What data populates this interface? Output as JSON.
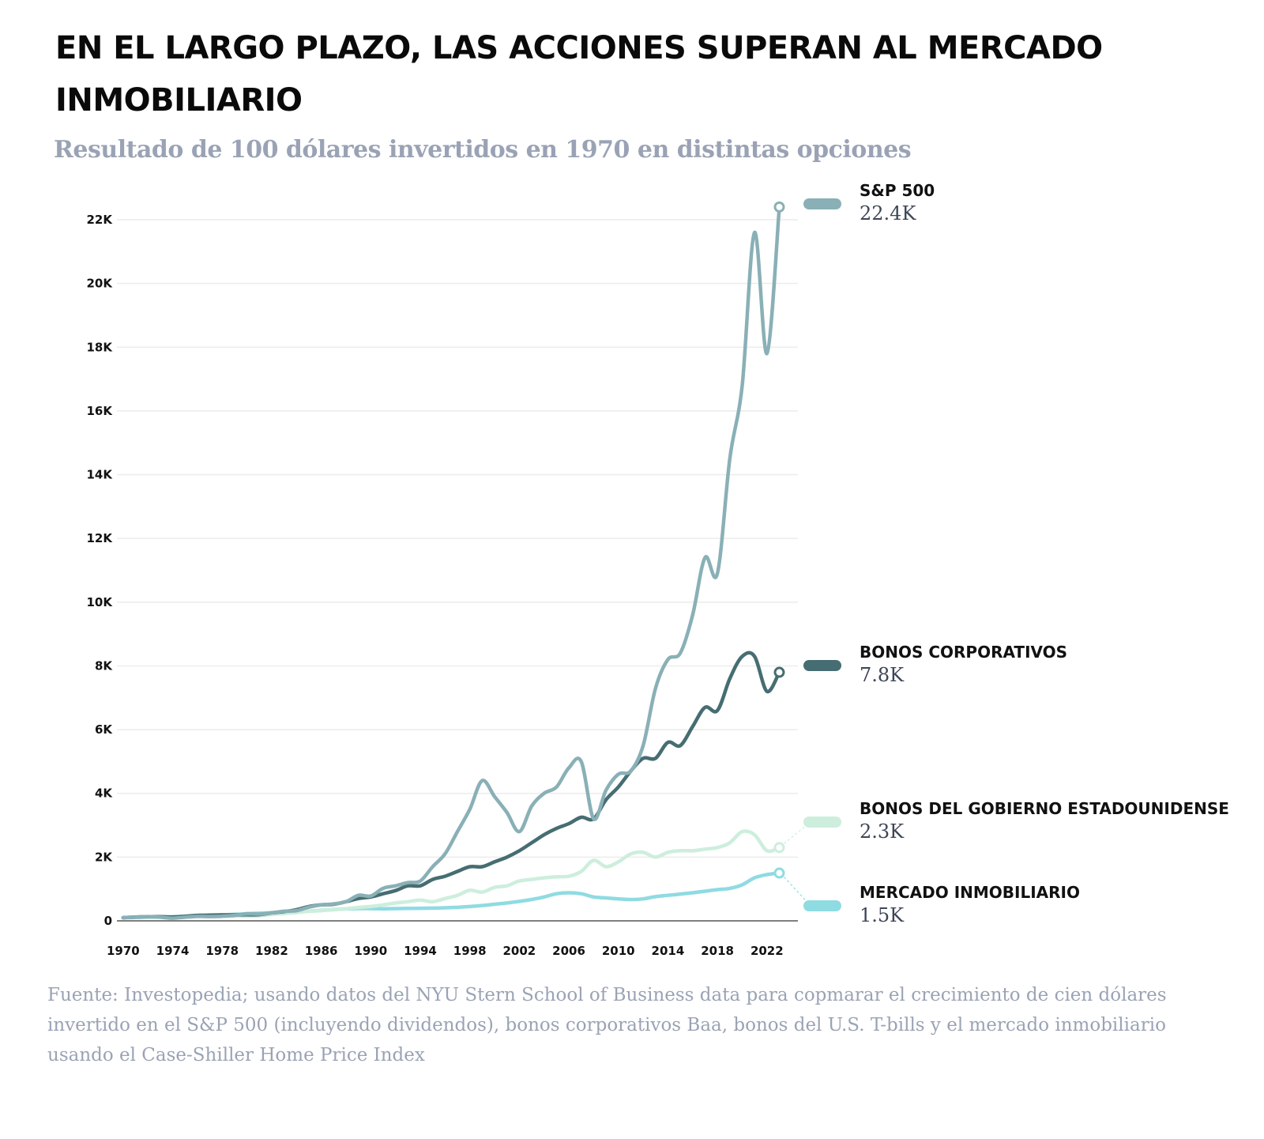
{
  "chart_data": {
    "type": "line",
    "title": "EN EL LARGO PLAZO, LAS ACCIONES SUPERAN AL MERCADO INMOBILIARIO",
    "subtitle": "Resultado de 100 dólares invertidos en 1970 en distintas opciones",
    "source": "Fuente: Investopedia; usando datos del NYU Stern School of Business data para copmarar el crecimiento de cien dólares invertido en el S&P 500 (incluyendo dividendos), bonos corporativos Baa, bonos del U.S. T-bills y el mercado inmobiliario usando el Case-Shiller Home Price Index",
    "xlabel": "",
    "ylabel": "",
    "xlim": [
      1969.5,
      2024.5
    ],
    "ylim": [
      0,
      22000
    ],
    "grid": true,
    "x_ticks": [
      1970,
      1974,
      1978,
      1982,
      1986,
      1990,
      1994,
      1998,
      2002,
      2006,
      2010,
      2014,
      2018,
      2022
    ],
    "y_ticks": [
      {
        "value": 0,
        "label": "0"
      },
      {
        "value": 2000,
        "label": "2K"
      },
      {
        "value": 4000,
        "label": "4K"
      },
      {
        "value": 6000,
        "label": "6K"
      },
      {
        "value": 8000,
        "label": "8K"
      },
      {
        "value": 10000,
        "label": "10K"
      },
      {
        "value": 12000,
        "label": "12K"
      },
      {
        "value": 14000,
        "label": "14K"
      },
      {
        "value": 16000,
        "label": "16K"
      },
      {
        "value": 18000,
        "label": "18K"
      },
      {
        "value": 20000,
        "label": "20K"
      },
      {
        "value": 22000,
        "label": "22K"
      }
    ],
    "legend_position": "right",
    "x": [
      1970,
      1971,
      1972,
      1973,
      1974,
      1975,
      1976,
      1977,
      1978,
      1979,
      1980,
      1981,
      1982,
      1983,
      1984,
      1985,
      1986,
      1987,
      1988,
      1989,
      1990,
      1991,
      1992,
      1993,
      1994,
      1995,
      1996,
      1997,
      1998,
      1999,
      2000,
      2001,
      2002,
      2003,
      2004,
      2005,
      2006,
      2007,
      2008,
      2009,
      2010,
      2011,
      2012,
      2013,
      2014,
      2015,
      2016,
      2017,
      2018,
      2019,
      2020,
      2021,
      2022,
      2023
    ],
    "series": [
      {
        "name": "MERCADO INMOBILIARIO",
        "value_label": "1.5K",
        "color": "#8fdbe2",
        "values": [
          100,
          105,
          112,
          120,
          130,
          140,
          150,
          165,
          185,
          205,
          225,
          240,
          255,
          270,
          285,
          305,
          330,
          355,
          375,
          385,
          385,
          380,
          385,
          390,
          395,
          400,
          410,
          425,
          450,
          480,
          520,
          560,
          610,
          670,
          750,
          850,
          880,
          850,
          750,
          720,
          690,
          670,
          690,
          760,
          800,
          840,
          880,
          930,
          980,
          1020,
          1130,
          1350,
          1450,
          1500
        ]
      },
      {
        "name": "BONOS DEL GOBIERNO ESTADOUNIDENSE",
        "value_label": "2.3K",
        "color": "#cdeedd",
        "values": [
          100,
          115,
          120,
          122,
          120,
          135,
          160,
          160,
          158,
          155,
          150,
          160,
          200,
          230,
          260,
          300,
          320,
          360,
          380,
          420,
          450,
          500,
          560,
          600,
          650,
          600,
          700,
          800,
          960,
          900,
          1050,
          1100,
          1250,
          1300,
          1350,
          1380,
          1400,
          1550,
          1900,
          1700,
          1850,
          2100,
          2150,
          2000,
          2150,
          2200,
          2200,
          2250,
          2300,
          2450,
          2800,
          2700,
          2200,
          2300
        ]
      },
      {
        "name": "BONOS CORPORATIVOS",
        "value_label": "7.8K",
        "color": "#466d72",
        "values": [
          100,
          120,
          130,
          130,
          120,
          145,
          170,
          180,
          185,
          185,
          190,
          195,
          250,
          290,
          350,
          450,
          500,
          520,
          600,
          700,
          750,
          850,
          950,
          1100,
          1100,
          1300,
          1400,
          1550,
          1700,
          1700,
          1850,
          2000,
          2200,
          2450,
          2700,
          2900,
          3050,
          3250,
          3200,
          3800,
          4200,
          4700,
          5100,
          5100,
          5600,
          5500,
          6100,
          6700,
          6600,
          7600,
          8300,
          8300,
          7200,
          7800
        ]
      },
      {
        "name": "S&P 500",
        "value_label": "22.4K",
        "color": "#89b0b6",
        "values": [
          100,
          115,
          135,
          115,
          85,
          115,
          140,
          135,
          145,
          170,
          220,
          210,
          250,
          300,
          320,
          430,
          500,
          530,
          600,
          800,
          780,
          1020,
          1100,
          1200,
          1250,
          1700,
          2100,
          2800,
          3500,
          4400,
          3900,
          3400,
          2800,
          3600,
          4000,
          4200,
          4800,
          5000,
          3200,
          4100,
          4600,
          4700,
          5500,
          7300,
          8200,
          8400,
          9600,
          11400,
          10900,
          14500,
          16800,
          21600,
          17800,
          22400
        ]
      }
    ]
  }
}
